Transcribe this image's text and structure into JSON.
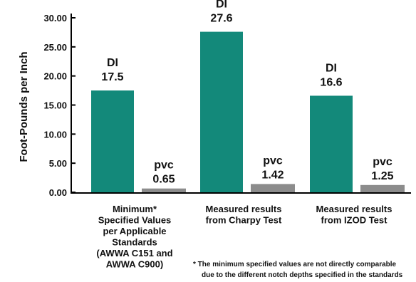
{
  "colors": {
    "di": "#13897a",
    "pvc": "#8c8c8c",
    "axis": "#000000"
  },
  "chart_data": {
    "type": "bar",
    "ylabel": "Foot-Pounds per Inch",
    "ylim": [
      0,
      30
    ],
    "yticks": [
      "0.00",
      "5.00",
      "10.00",
      "15.00",
      "20.00",
      "25.00",
      "30.00"
    ],
    "categories": [
      [
        "Minimum*",
        "Specified Values",
        "per Applicable",
        "Standards",
        "(AWWA C151 and",
        "AWWA C900)"
      ],
      [
        "Measured results",
        "from Charpy Test"
      ],
      [
        "Measured results",
        "from IZOD Test"
      ]
    ],
    "series": [
      {
        "name": "DI",
        "values": [
          17.5,
          27.6,
          16.6
        ],
        "labels": [
          "17.5",
          "27.6",
          "16.6"
        ]
      },
      {
        "name": "pvc",
        "values": [
          0.65,
          1.42,
          1.25
        ],
        "labels": [
          "0.65",
          "1.42",
          "1.25"
        ]
      }
    ],
    "legend": "none",
    "grid": false,
    "footnote": [
      "* The minimum specified values are not directly comparable",
      "due to the different notch depths specified in the standards"
    ]
  }
}
